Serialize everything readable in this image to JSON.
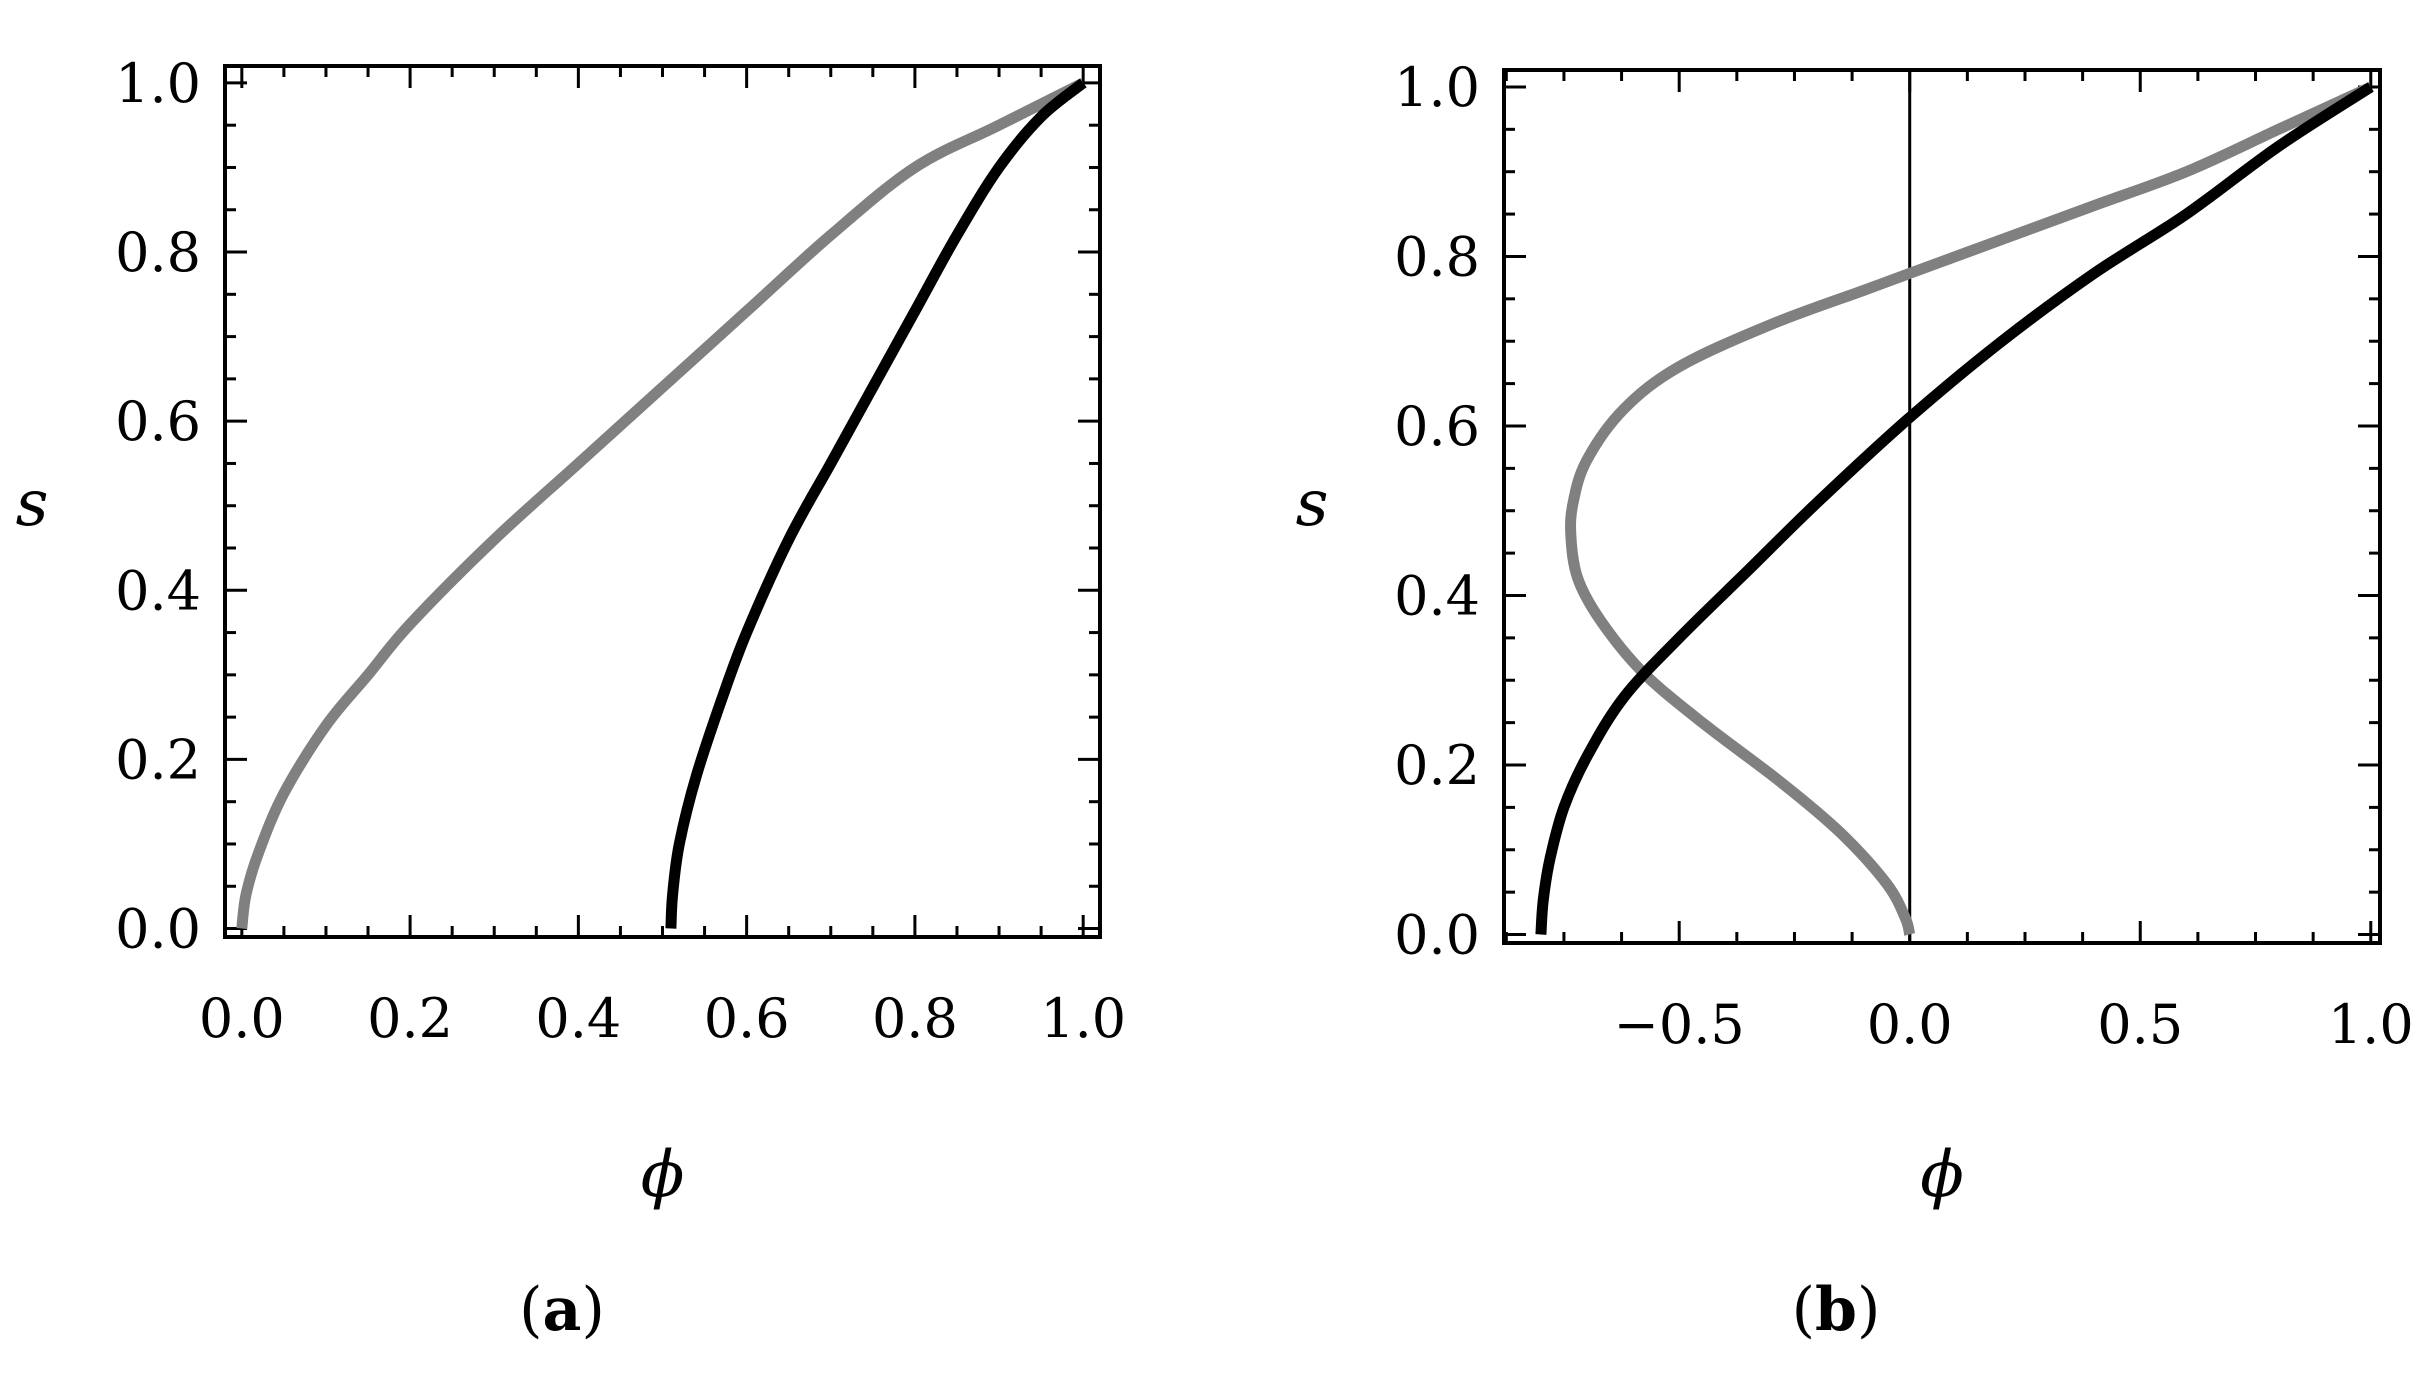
{
  "chart_data": [
    {
      "type": "line",
      "panel_label": {
        "open": "(",
        "letter": "a",
        "close": ")"
      },
      "xlabel": "ϕ",
      "ylabel": "s",
      "xlim": [
        -0.02,
        1.02
      ],
      "ylim": [
        -0.01,
        1.02
      ],
      "xticks": [
        "0.0",
        "0.2",
        "0.4",
        "0.6",
        "0.8",
        "1.0"
      ],
      "xtick_values": [
        0.0,
        0.2,
        0.4,
        0.6,
        0.8,
        1.0
      ],
      "yticks": [
        "0.0",
        "0.2",
        "0.4",
        "0.6",
        "0.8",
        "1.0"
      ],
      "ytick_values": [
        0.0,
        0.2,
        0.4,
        0.6,
        0.8,
        1.0
      ],
      "grid": false,
      "reference_lines": [],
      "series": [
        {
          "color": "#808080",
          "x": [
            0.0,
            0.005,
            0.02,
            0.05,
            0.1,
            0.15,
            0.2,
            0.3,
            0.4,
            0.5,
            0.6,
            0.7,
            0.8,
            0.9,
            1.0
          ],
          "y": [
            0.0,
            0.04,
            0.09,
            0.16,
            0.24,
            0.3,
            0.36,
            0.46,
            0.55,
            0.64,
            0.73,
            0.82,
            0.9,
            0.95,
            1.0
          ]
        },
        {
          "color": "#000000",
          "x": [
            0.51,
            0.512,
            0.52,
            0.54,
            0.57,
            0.6,
            0.65,
            0.7,
            0.75,
            0.8,
            0.85,
            0.9,
            0.95,
            1.0
          ],
          "y": [
            0.0,
            0.04,
            0.1,
            0.18,
            0.27,
            0.35,
            0.46,
            0.55,
            0.64,
            0.73,
            0.82,
            0.9,
            0.96,
            1.0
          ]
        }
      ]
    },
    {
      "type": "line",
      "panel_label": {
        "open": "(",
        "letter": "b",
        "close": ")"
      },
      "xlabel": "ϕ",
      "ylabel": "s",
      "xlim": [
        -0.88,
        1.02
      ],
      "ylim": [
        -0.01,
        1.02
      ],
      "xticks": [
        "−0.5",
        "0.0",
        "0.5",
        "1.0"
      ],
      "xtick_values": [
        -0.5,
        0.0,
        0.5,
        1.0
      ],
      "yticks": [
        "0.0",
        "0.2",
        "0.4",
        "0.6",
        "0.8",
        "1.0"
      ],
      "ytick_values": [
        0.0,
        0.2,
        0.4,
        0.6,
        0.8,
        1.0
      ],
      "grid": false,
      "reference_lines": [
        {
          "axis": "x",
          "value": 0.0
        }
      ],
      "series": [
        {
          "color": "#808080",
          "x": [
            0.0,
            -0.01,
            -0.05,
            -0.15,
            -0.28,
            -0.45,
            -0.58,
            -0.67,
            -0.72,
            -0.735,
            -0.73,
            -0.7,
            -0.62,
            -0.5,
            -0.3,
            -0.1,
            0.0,
            0.2,
            0.4,
            0.6,
            0.8,
            1.0
          ],
          "y": [
            0.0,
            0.02,
            0.06,
            0.12,
            0.18,
            0.25,
            0.31,
            0.37,
            0.42,
            0.47,
            0.51,
            0.56,
            0.62,
            0.67,
            0.72,
            0.76,
            0.78,
            0.82,
            0.86,
            0.9,
            0.95,
            1.0
          ]
        },
        {
          "color": "#000000",
          "x": [
            -0.8,
            -0.795,
            -0.78,
            -0.75,
            -0.7,
            -0.62,
            -0.5,
            -0.35,
            -0.2,
            0.0,
            0.2,
            0.4,
            0.6,
            0.8,
            1.0
          ],
          "y": [
            0.0,
            0.04,
            0.09,
            0.15,
            0.21,
            0.28,
            0.35,
            0.43,
            0.51,
            0.61,
            0.7,
            0.78,
            0.85,
            0.93,
            1.0
          ]
        }
      ]
    }
  ]
}
